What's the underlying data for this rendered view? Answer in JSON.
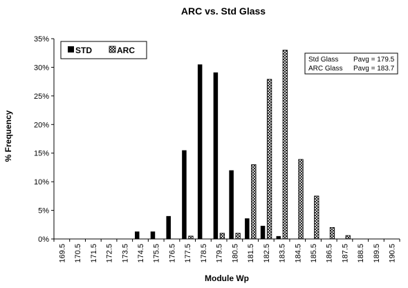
{
  "chart_data": {
    "type": "bar",
    "title": "ARC vs. Std Glass",
    "xlabel": "Module Wp",
    "ylabel": "% Frequency",
    "ylim": [
      0,
      35
    ],
    "ytick_step": 5,
    "ytick_labels": [
      "0%",
      "5%",
      "10%",
      "15%",
      "20%",
      "25%",
      "30%",
      "35%"
    ],
    "grid": false,
    "legend_position": "top-left",
    "categories": [
      "169.5",
      "170.5",
      "171.5",
      "172.5",
      "173.5",
      "174.5",
      "175.5",
      "176.5",
      "177.5",
      "178.5",
      "179.5",
      "180.5",
      "181.5",
      "182.5",
      "183.5",
      "184.5",
      "185.5",
      "186.5",
      "187.5",
      "188.5",
      "189.5",
      "190.5"
    ],
    "series": [
      {
        "name": "STD",
        "color": "#000000",
        "fill": "solid",
        "values": [
          0,
          0,
          0,
          0,
          0,
          1.3,
          1.3,
          4.0,
          15.5,
          30.5,
          29.1,
          12.0,
          3.6,
          2.3,
          0.5,
          0,
          0,
          0,
          0,
          0,
          0,
          0
        ]
      },
      {
        "name": "ARC",
        "color": "#000000",
        "fill": "crosshatch",
        "values": [
          0,
          0,
          0,
          0,
          0,
          0,
          0,
          0,
          0.5,
          0,
          1.0,
          1.0,
          13.0,
          27.9,
          33.0,
          13.9,
          7.5,
          2.0,
          0.6,
          0,
          0,
          0
        ]
      }
    ],
    "stats_box": {
      "position": "top-right",
      "lines": [
        {
          "label": "Std Glass",
          "stat": "Pavg = 179.5"
        },
        {
          "label": "ARC Glass",
          "stat": "Pavg = 183.7"
        }
      ]
    }
  }
}
